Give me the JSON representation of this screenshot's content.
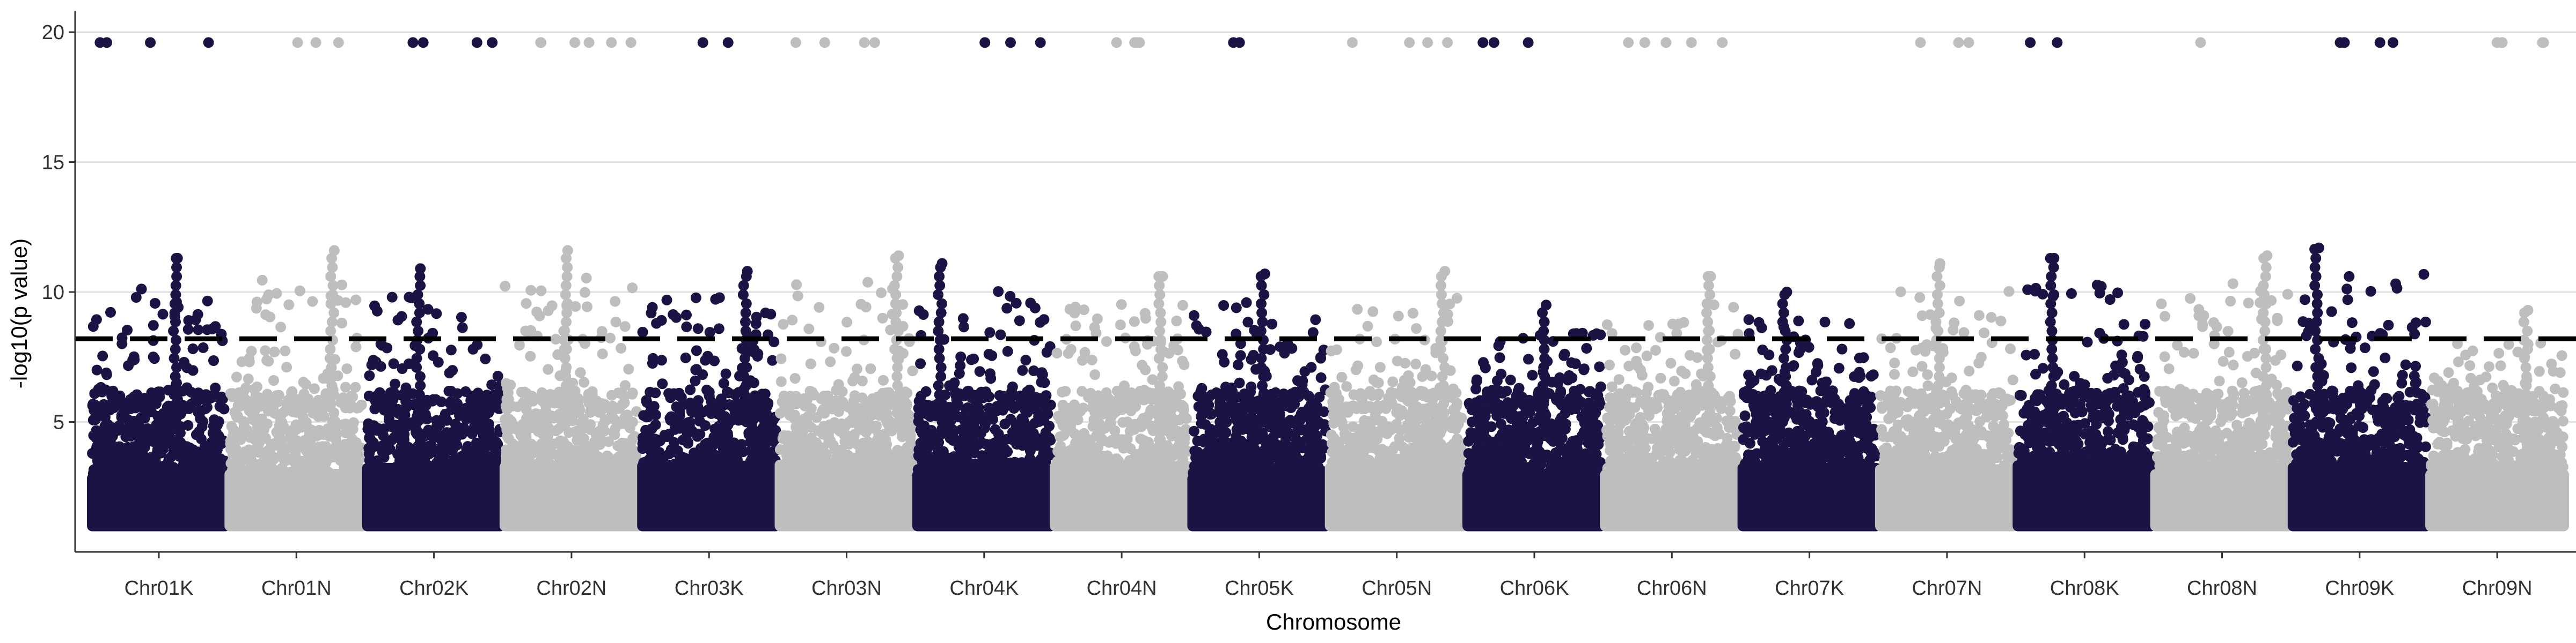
{
  "chart_data": {
    "type": "scatter",
    "subtype": "manhattan",
    "title": "",
    "xlabel": "Chromosome",
    "ylabel": "-log10(p value)",
    "ylim": [
      0,
      20.5
    ],
    "yticks": [
      5,
      10,
      15,
      20
    ],
    "ytick_labels": [
      "5",
      "10",
      "15",
      "20"
    ],
    "threshold": 8.2,
    "threshold_style": "dashed",
    "grid": "horizontal major only",
    "point_floor": 1.0,
    "colors": {
      "dark": "#1d1244",
      "light": "#bebebe",
      "threshold": "#000000",
      "grid": "#d9d9d9",
      "axis": "#333333"
    },
    "chromosomes": [
      {
        "name": "Chr01K",
        "color": "dark",
        "peak": 11.3,
        "hits": 4
      },
      {
        "name": "Chr01N",
        "color": "light",
        "peak": 11.6,
        "hits": 3
      },
      {
        "name": "Chr02K",
        "color": "dark",
        "peak": 10.9,
        "hits": 4
      },
      {
        "name": "Chr02N",
        "color": "light",
        "peak": 11.6,
        "hits": 6
      },
      {
        "name": "Chr03K",
        "color": "dark",
        "peak": 10.8,
        "hits": 2
      },
      {
        "name": "Chr03N",
        "color": "light",
        "peak": 11.4,
        "hits": 4
      },
      {
        "name": "Chr04K",
        "color": "dark",
        "peak": 11.1,
        "hits": 3
      },
      {
        "name": "Chr04N",
        "color": "light",
        "peak": 10.6,
        "hits": 4
      },
      {
        "name": "Chr05K",
        "color": "dark",
        "peak": 10.7,
        "hits": 2
      },
      {
        "name": "Chr05N",
        "color": "light",
        "peak": 10.8,
        "hits": 4
      },
      {
        "name": "Chr06K",
        "color": "dark",
        "peak": 9.5,
        "hits": 3
      },
      {
        "name": "Chr06N",
        "color": "light",
        "peak": 10.6,
        "hits": 5
      },
      {
        "name": "Chr07K",
        "color": "dark",
        "peak": 10.0,
        "hits": 0
      },
      {
        "name": "Chr07N",
        "color": "light",
        "peak": 11.1,
        "hits": 3
      },
      {
        "name": "Chr08K",
        "color": "dark",
        "peak": 11.3,
        "hits": 2
      },
      {
        "name": "Chr08N",
        "color": "light",
        "peak": 11.4,
        "hits": 1
      },
      {
        "name": "Chr09K",
        "color": "dark",
        "peak": 11.7,
        "hits": 5
      },
      {
        "name": "Chr09N",
        "color": "light",
        "peak": 9.3,
        "hits": 5
      }
    ]
  }
}
